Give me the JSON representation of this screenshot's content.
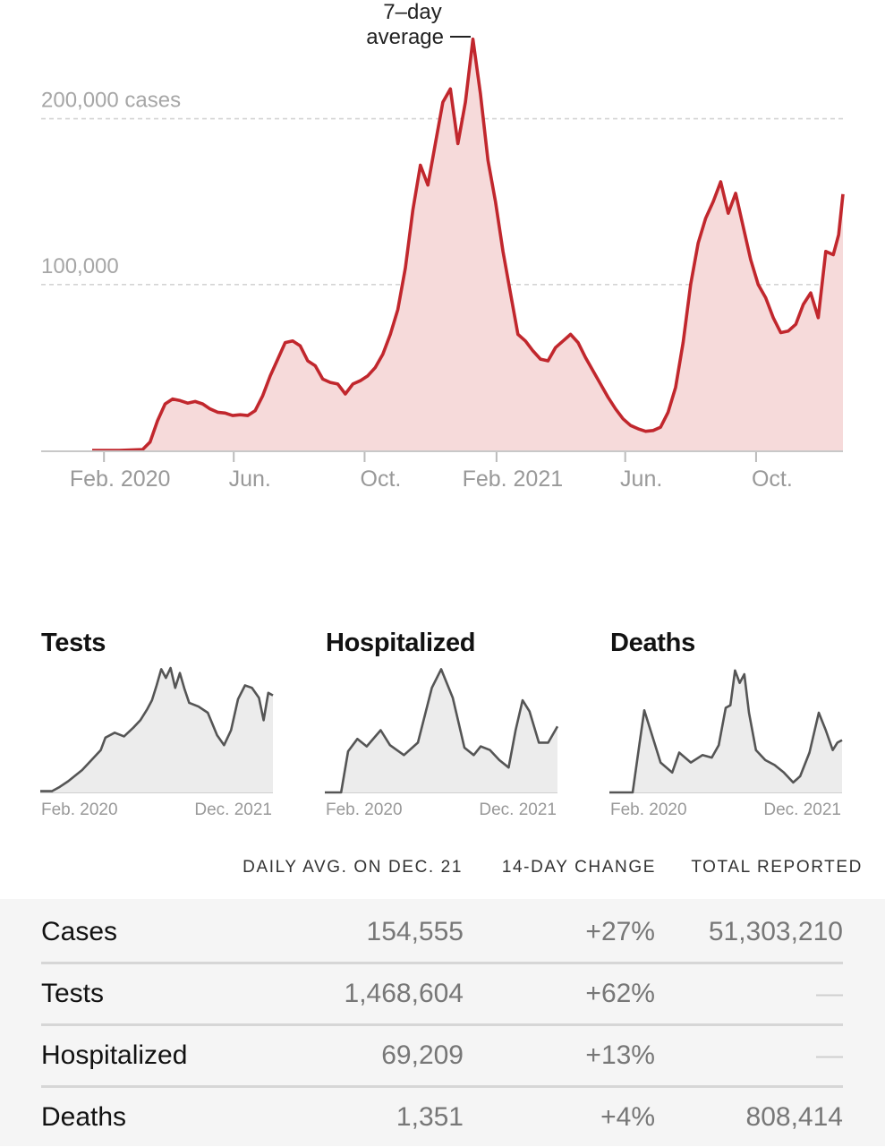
{
  "chart_data": [
    {
      "type": "area",
      "series_annotation": "7–day average",
      "y_tick_labels": [
        "200,000 cases",
        "100,000"
      ],
      "y_ticks": [
        200000,
        100000
      ],
      "ylim": [
        0,
        250000
      ],
      "x_tick_labels": [
        "Feb. 2020",
        "Jun.",
        "Oct.",
        "Feb. 2021",
        "Jun.",
        "Oct."
      ],
      "x_tick_dates": [
        "2020-02-01",
        "2020-06-01",
        "2020-10-01",
        "2021-02-01",
        "2021-06-01",
        "2021-10-01"
      ],
      "xlim": [
        "2020-01-21",
        "2021-12-21"
      ],
      "grid": true,
      "points": [
        [
          "2020-01-21",
          0
        ],
        [
          "2020-02-15",
          0
        ],
        [
          "2020-03-08",
          500
        ],
        [
          "2020-03-15",
          5000
        ],
        [
          "2020-03-22",
          18000
        ],
        [
          "2020-03-29",
          28000
        ],
        [
          "2020-04-05",
          31000
        ],
        [
          "2020-04-12",
          30000
        ],
        [
          "2020-04-19",
          28500
        ],
        [
          "2020-04-26",
          29500
        ],
        [
          "2020-05-03",
          28000
        ],
        [
          "2020-05-10",
          25000
        ],
        [
          "2020-05-17",
          23000
        ],
        [
          "2020-05-24",
          22500
        ],
        [
          "2020-05-31",
          21000
        ],
        [
          "2020-06-07",
          21500
        ],
        [
          "2020-06-14",
          21000
        ],
        [
          "2020-06-21",
          24000
        ],
        [
          "2020-06-28",
          33000
        ],
        [
          "2020-07-05",
          45000
        ],
        [
          "2020-07-12",
          55000
        ],
        [
          "2020-07-19",
          65000
        ],
        [
          "2020-07-26",
          66000
        ],
        [
          "2020-08-02",
          63000
        ],
        [
          "2020-08-09",
          54000
        ],
        [
          "2020-08-16",
          51000
        ],
        [
          "2020-08-23",
          43000
        ],
        [
          "2020-08-30",
          41000
        ],
        [
          "2020-09-06",
          40000
        ],
        [
          "2020-09-13",
          34000
        ],
        [
          "2020-09-20",
          40000
        ],
        [
          "2020-09-27",
          42000
        ],
        [
          "2020-10-04",
          45000
        ],
        [
          "2020-10-11",
          50000
        ],
        [
          "2020-10-18",
          58000
        ],
        [
          "2020-10-25",
          70000
        ],
        [
          "2020-11-01",
          85000
        ],
        [
          "2020-11-08",
          110000
        ],
        [
          "2020-11-15",
          145000
        ],
        [
          "2020-11-22",
          172000
        ],
        [
          "2020-11-29",
          160000
        ],
        [
          "2020-12-06",
          185000
        ],
        [
          "2020-12-13",
          210000
        ],
        [
          "2020-12-20",
          218000
        ],
        [
          "2020-12-27",
          185000
        ],
        [
          "2021-01-03",
          210000
        ],
        [
          "2021-01-10",
          248000
        ],
        [
          "2021-01-17",
          215000
        ],
        [
          "2021-01-24",
          175000
        ],
        [
          "2021-01-31",
          150000
        ],
        [
          "2021-02-07",
          120000
        ],
        [
          "2021-02-14",
          95000
        ],
        [
          "2021-02-21",
          70000
        ],
        [
          "2021-02-28",
          66000
        ],
        [
          "2021-03-07",
          60000
        ],
        [
          "2021-03-14",
          55000
        ],
        [
          "2021-03-21",
          54000
        ],
        [
          "2021-03-28",
          62000
        ],
        [
          "2021-04-04",
          66000
        ],
        [
          "2021-04-11",
          70000
        ],
        [
          "2021-04-18",
          65000
        ],
        [
          "2021-04-25",
          56000
        ],
        [
          "2021-05-02",
          48000
        ],
        [
          "2021-05-09",
          40000
        ],
        [
          "2021-05-16",
          32000
        ],
        [
          "2021-05-23",
          25000
        ],
        [
          "2021-05-30",
          19000
        ],
        [
          "2021-06-06",
          15000
        ],
        [
          "2021-06-13",
          13000
        ],
        [
          "2021-06-20",
          11500
        ],
        [
          "2021-06-27",
          12000
        ],
        [
          "2021-07-04",
          14000
        ],
        [
          "2021-07-11",
          23000
        ],
        [
          "2021-07-18",
          38000
        ],
        [
          "2021-07-25",
          65000
        ],
        [
          "2021-08-01",
          100000
        ],
        [
          "2021-08-08",
          125000
        ],
        [
          "2021-08-15",
          140000
        ],
        [
          "2021-08-22",
          150000
        ],
        [
          "2021-08-29",
          162000
        ],
        [
          "2021-09-05",
          143000
        ],
        [
          "2021-09-12",
          155000
        ],
        [
          "2021-09-19",
          135000
        ],
        [
          "2021-09-26",
          115000
        ],
        [
          "2021-10-03",
          100000
        ],
        [
          "2021-10-10",
          92000
        ],
        [
          "2021-10-17",
          80000
        ],
        [
          "2021-10-24",
          71000
        ],
        [
          "2021-10-31",
          72000
        ],
        [
          "2021-11-07",
          76000
        ],
        [
          "2021-11-14",
          88000
        ],
        [
          "2021-11-21",
          95000
        ],
        [
          "2021-11-28",
          80000
        ],
        [
          "2021-12-05",
          120000
        ],
        [
          "2021-12-12",
          118000
        ],
        [
          "2021-12-17",
          130000
        ],
        [
          "2021-12-21",
          154555
        ]
      ]
    },
    {
      "type": "area",
      "title": "Tests",
      "x_tick_labels": [
        "Feb. 2020",
        "Dec. 2021"
      ],
      "points": [
        [
          0,
          0.01
        ],
        [
          0.05,
          0.01
        ],
        [
          0.08,
          0.04
        ],
        [
          0.12,
          0.09
        ],
        [
          0.18,
          0.18
        ],
        [
          0.22,
          0.26
        ],
        [
          0.26,
          0.34
        ],
        [
          0.28,
          0.44
        ],
        [
          0.32,
          0.48
        ],
        [
          0.36,
          0.45
        ],
        [
          0.4,
          0.52
        ],
        [
          0.43,
          0.58
        ],
        [
          0.46,
          0.67
        ],
        [
          0.48,
          0.74
        ],
        [
          0.5,
          0.86
        ],
        [
          0.52,
          0.99
        ],
        [
          0.54,
          0.92
        ],
        [
          0.56,
          1.0
        ],
        [
          0.58,
          0.84
        ],
        [
          0.6,
          0.96
        ],
        [
          0.62,
          0.83
        ],
        [
          0.64,
          0.72
        ],
        [
          0.68,
          0.69
        ],
        [
          0.72,
          0.64
        ],
        [
          0.76,
          0.46
        ],
        [
          0.79,
          0.38
        ],
        [
          0.82,
          0.5
        ],
        [
          0.85,
          0.75
        ],
        [
          0.88,
          0.86
        ],
        [
          0.91,
          0.84
        ],
        [
          0.94,
          0.76
        ],
        [
          0.96,
          0.58
        ],
        [
          0.98,
          0.8
        ],
        [
          1.0,
          0.78
        ]
      ]
    },
    {
      "type": "area",
      "title": "Hospitalized",
      "x_tick_labels": [
        "Feb. 2020",
        "Dec. 2021"
      ],
      "points": [
        [
          0,
          0.0
        ],
        [
          0.07,
          0.0
        ],
        [
          0.1,
          0.33
        ],
        [
          0.14,
          0.43
        ],
        [
          0.18,
          0.37
        ],
        [
          0.24,
          0.5
        ],
        [
          0.28,
          0.38
        ],
        [
          0.34,
          0.3
        ],
        [
          0.4,
          0.4
        ],
        [
          0.46,
          0.84
        ],
        [
          0.5,
          0.99
        ],
        [
          0.55,
          0.76
        ],
        [
          0.6,
          0.36
        ],
        [
          0.64,
          0.3
        ],
        [
          0.67,
          0.37
        ],
        [
          0.71,
          0.34
        ],
        [
          0.75,
          0.26
        ],
        [
          0.79,
          0.2
        ],
        [
          0.82,
          0.5
        ],
        [
          0.85,
          0.74
        ],
        [
          0.88,
          0.65
        ],
        [
          0.92,
          0.4
        ],
        [
          0.96,
          0.4
        ],
        [
          1.0,
          0.53
        ]
      ]
    },
    {
      "type": "area",
      "title": "Deaths",
      "x_tick_labels": [
        "Feb. 2020",
        "Dec. 2021"
      ],
      "points": [
        [
          0,
          0.0
        ],
        [
          0.1,
          0.0
        ],
        [
          0.13,
          0.4
        ],
        [
          0.15,
          0.66
        ],
        [
          0.18,
          0.48
        ],
        [
          0.22,
          0.24
        ],
        [
          0.27,
          0.16
        ],
        [
          0.3,
          0.32
        ],
        [
          0.35,
          0.24
        ],
        [
          0.4,
          0.3
        ],
        [
          0.44,
          0.28
        ],
        [
          0.47,
          0.38
        ],
        [
          0.5,
          0.68
        ],
        [
          0.52,
          0.7
        ],
        [
          0.54,
          0.98
        ],
        [
          0.56,
          0.88
        ],
        [
          0.58,
          0.95
        ],
        [
          0.6,
          0.64
        ],
        [
          0.63,
          0.34
        ],
        [
          0.67,
          0.26
        ],
        [
          0.71,
          0.22
        ],
        [
          0.75,
          0.16
        ],
        [
          0.79,
          0.08
        ],
        [
          0.82,
          0.13
        ],
        [
          0.86,
          0.32
        ],
        [
          0.9,
          0.64
        ],
        [
          0.93,
          0.5
        ],
        [
          0.96,
          0.34
        ],
        [
          0.98,
          0.4
        ],
        [
          1.0,
          0.42
        ]
      ]
    }
  ],
  "stats": {
    "headers": {
      "daily_avg": "DAILY AVG. ON DEC. 21",
      "change": "14-DAY CHANGE",
      "total": "TOTAL REPORTED"
    },
    "rows": [
      {
        "label": "Cases",
        "daily_avg": "154,555",
        "change": "+27%",
        "total": "51,303,210"
      },
      {
        "label": "Tests",
        "daily_avg": "1,468,604",
        "change": "+62%",
        "total": "—"
      },
      {
        "label": "Hospitalized",
        "daily_avg": "69,209",
        "change": "+13%",
        "total": "—"
      },
      {
        "label": "Deaths",
        "daily_avg": "1,351",
        "change": "+4%",
        "total": "808,414"
      }
    ]
  },
  "colors": {
    "line_red": "#c1272d",
    "area_red": "#f6dada",
    "mini_line": "#555555",
    "mini_area": "#ececec"
  }
}
